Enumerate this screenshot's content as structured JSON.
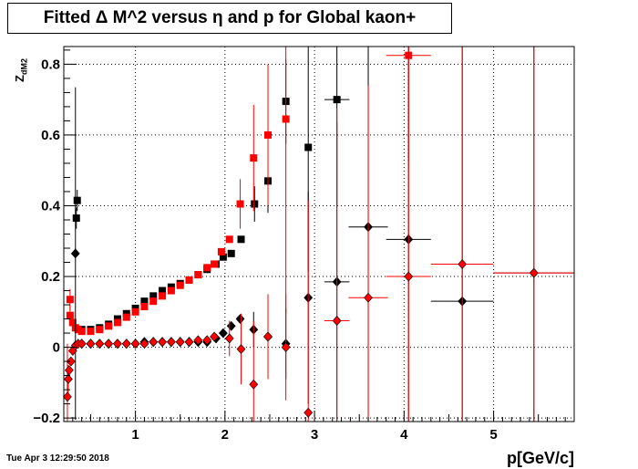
{
  "title": "Fitted Δ M^2 versus η and p for Global kaon+",
  "timestamp": "Tue Apr  3 12:29:50 2018",
  "colors": {
    "series_a": "#000000",
    "series_b": "#ff0000",
    "grid": "#000000"
  },
  "chart_data": {
    "type": "scatter",
    "title": "Fitted Δ M^2 versus η and p for Global kaon+",
    "xlabel": "p[GeV/c]",
    "ylabel_main": "Z",
    "ylabel_sub": "dM2",
    "xlim": [
      0.2,
      5.9
    ],
    "ylim": [
      -0.21,
      0.85
    ],
    "xticks": [
      1,
      2,
      3,
      4,
      5
    ],
    "yticks": [
      -0.2,
      0,
      0.2,
      0.4,
      0.6,
      0.8
    ],
    "ytick_labels": [
      "−0.2",
      "0",
      "0.2",
      "0.4",
      "0.6",
      "0.8"
    ],
    "grid": true,
    "series": [
      {
        "marker": "square",
        "color": "#000000",
        "points": [
          {
            "x": 0.35,
            "y": 0.415,
            "ey": 0.03
          },
          {
            "x": 0.34,
            "y": 0.365,
            "ey": 0.03
          },
          {
            "x": 0.4,
            "y": 0.05
          },
          {
            "x": 0.5,
            "y": 0.05
          },
          {
            "x": 0.6,
            "y": 0.055
          },
          {
            "x": 0.7,
            "y": 0.065
          },
          {
            "x": 0.8,
            "y": 0.08
          },
          {
            "x": 0.9,
            "y": 0.095
          },
          {
            "x": 1.0,
            "y": 0.11
          },
          {
            "x": 1.1,
            "y": 0.13
          },
          {
            "x": 1.2,
            "y": 0.145
          },
          {
            "x": 1.3,
            "y": 0.16
          },
          {
            "x": 1.4,
            "y": 0.17
          },
          {
            "x": 1.5,
            "y": 0.18
          },
          {
            "x": 1.6,
            "y": 0.19
          },
          {
            "x": 1.7,
            "y": 0.205
          },
          {
            "x": 1.8,
            "y": 0.22
          },
          {
            "x": 1.9,
            "y": 0.235
          },
          {
            "x": 1.98,
            "y": 0.255
          },
          {
            "x": 2.07,
            "y": 0.265
          },
          {
            "x": 2.18,
            "y": 0.305
          },
          {
            "x": 2.33,
            "y": 0.405,
            "ey": 0.05
          },
          {
            "x": 2.48,
            "y": 0.47,
            "ey": 0.09
          },
          {
            "x": 2.68,
            "y": 0.695,
            "ey": 0.12
          },
          {
            "x": 2.93,
            "y": 0.565,
            "ey": 0.35
          },
          {
            "x": 3.25,
            "y": 0.7,
            "ey": 0.3,
            "ex": 0.14
          }
        ]
      },
      {
        "marker": "square",
        "color": "#ff0000",
        "points": [
          {
            "x": 0.27,
            "y": 0.135,
            "ey": 0.03
          },
          {
            "x": 0.27,
            "y": 0.09,
            "ey": 0.03
          },
          {
            "x": 0.3,
            "y": 0.07
          },
          {
            "x": 0.33,
            "y": 0.055
          },
          {
            "x": 0.36,
            "y": 0.05
          },
          {
            "x": 0.4,
            "y": 0.045
          },
          {
            "x": 0.5,
            "y": 0.045
          },
          {
            "x": 0.6,
            "y": 0.05
          },
          {
            "x": 0.7,
            "y": 0.06
          },
          {
            "x": 0.8,
            "y": 0.07
          },
          {
            "x": 0.9,
            "y": 0.085
          },
          {
            "x": 1.0,
            "y": 0.1
          },
          {
            "x": 1.1,
            "y": 0.115
          },
          {
            "x": 1.2,
            "y": 0.13
          },
          {
            "x": 1.3,
            "y": 0.145
          },
          {
            "x": 1.4,
            "y": 0.16
          },
          {
            "x": 1.5,
            "y": 0.175
          },
          {
            "x": 1.6,
            "y": 0.19
          },
          {
            "x": 1.7,
            "y": 0.205
          },
          {
            "x": 1.8,
            "y": 0.225
          },
          {
            "x": 1.88,
            "y": 0.235
          },
          {
            "x": 1.96,
            "y": 0.27
          },
          {
            "x": 2.05,
            "y": 0.305
          },
          {
            "x": 2.17,
            "y": 0.405,
            "ey": 0.07
          },
          {
            "x": 2.32,
            "y": 0.535,
            "ey": 0.15
          },
          {
            "x": 2.48,
            "y": 0.6,
            "ey": 0.2
          },
          {
            "x": 2.68,
            "y": 0.645,
            "ey": 0.55
          },
          {
            "x": 4.05,
            "y": 0.825,
            "ey": 0.3,
            "ex": 0.25
          }
        ]
      },
      {
        "marker": "diamond",
        "color": "#000000",
        "points": [
          {
            "x": 0.33,
            "y": 0.265,
            "ey": 0.47
          },
          {
            "x": 0.4,
            "y": 0.01
          },
          {
            "x": 0.5,
            "y": 0.01
          },
          {
            "x": 0.6,
            "y": 0.01
          },
          {
            "x": 0.7,
            "y": 0.01
          },
          {
            "x": 0.8,
            "y": 0.01
          },
          {
            "x": 0.9,
            "y": 0.01
          },
          {
            "x": 1.0,
            "y": 0.01
          },
          {
            "x": 1.1,
            "y": 0.015
          },
          {
            "x": 1.2,
            "y": 0.015
          },
          {
            "x": 1.3,
            "y": 0.015
          },
          {
            "x": 1.4,
            "y": 0.015
          },
          {
            "x": 1.5,
            "y": 0.015
          },
          {
            "x": 1.6,
            "y": 0.015
          },
          {
            "x": 1.7,
            "y": 0.015
          },
          {
            "x": 1.8,
            "y": 0.015
          },
          {
            "x": 1.9,
            "y": 0.025
          },
          {
            "x": 1.98,
            "y": 0.04
          },
          {
            "x": 2.07,
            "y": 0.06
          },
          {
            "x": 2.17,
            "y": 0.08
          },
          {
            "x": 2.32,
            "y": 0.05,
            "ey": 0.05
          },
          {
            "x": 2.48,
            "y": 0.03,
            "ey": 0.08
          },
          {
            "x": 2.68,
            "y": 0.01,
            "ey": 0.1
          },
          {
            "x": 2.93,
            "y": 0.14,
            "ey": 0.3
          },
          {
            "x": 3.25,
            "y": 0.185,
            "ey": 0.45,
            "ex": 0.14
          },
          {
            "x": 3.6,
            "y": 0.34,
            "ey": 0.6,
            "ex": 0.22
          },
          {
            "x": 4.05,
            "y": 0.305,
            "ey": 0.7,
            "ex": 0.25
          },
          {
            "x": 4.65,
            "y": 0.13,
            "ey": 0.9,
            "ex": 0.35
          },
          {
            "x": 5.45,
            "y": 0.21,
            "ey": 0.7,
            "ex": 0.45
          }
        ]
      },
      {
        "marker": "diamond",
        "color": "#ff0000",
        "points": [
          {
            "x": 0.24,
            "y": -0.14,
            "ey": 0.15
          },
          {
            "x": 0.25,
            "y": -0.09,
            "ey": 0.04
          },
          {
            "x": 0.26,
            "y": -0.065
          },
          {
            "x": 0.28,
            "y": -0.04
          },
          {
            "x": 0.3,
            "y": -0.01
          },
          {
            "x": 0.33,
            "y": 0.005
          },
          {
            "x": 0.36,
            "y": 0.01
          },
          {
            "x": 0.4,
            "y": 0.01
          },
          {
            "x": 0.5,
            "y": 0.01
          },
          {
            "x": 0.6,
            "y": 0.01
          },
          {
            "x": 0.7,
            "y": 0.01
          },
          {
            "x": 0.8,
            "y": 0.01
          },
          {
            "x": 0.9,
            "y": 0.01
          },
          {
            "x": 1.0,
            "y": 0.01
          },
          {
            "x": 1.1,
            "y": 0.01
          },
          {
            "x": 1.2,
            "y": 0.015
          },
          {
            "x": 1.3,
            "y": 0.015
          },
          {
            "x": 1.4,
            "y": 0.015
          },
          {
            "x": 1.5,
            "y": 0.015
          },
          {
            "x": 1.6,
            "y": 0.015
          },
          {
            "x": 1.7,
            "y": 0.02
          },
          {
            "x": 1.8,
            "y": 0.02
          },
          {
            "x": 1.88,
            "y": 0.03
          },
          {
            "x": 2.05,
            "y": 0.025,
            "ey": 0.05
          },
          {
            "x": 2.18,
            "y": -0.005,
            "ey": 0.1
          },
          {
            "x": 2.32,
            "y": -0.105,
            "ey": 0.18
          },
          {
            "x": 2.48,
            "y": 0.03,
            "ey": 0.12
          },
          {
            "x": 2.68,
            "y": 0.0,
            "ey": 0.15
          },
          {
            "x": 2.93,
            "y": -0.185,
            "ey": 0.6
          },
          {
            "x": 3.25,
            "y": 0.075,
            "ey": 0.6,
            "ex": 0.14
          },
          {
            "x": 3.6,
            "y": 0.14,
            "ey": 0.6,
            "ex": 0.22
          },
          {
            "x": 4.05,
            "y": 0.2,
            "ey": 0.7,
            "ex": 0.25
          },
          {
            "x": 4.65,
            "y": 0.235,
            "ey": 0.9,
            "ex": 0.35
          },
          {
            "x": 5.45,
            "y": 0.21,
            "ey": 0.7,
            "ex": 0.45
          }
        ]
      }
    ]
  }
}
